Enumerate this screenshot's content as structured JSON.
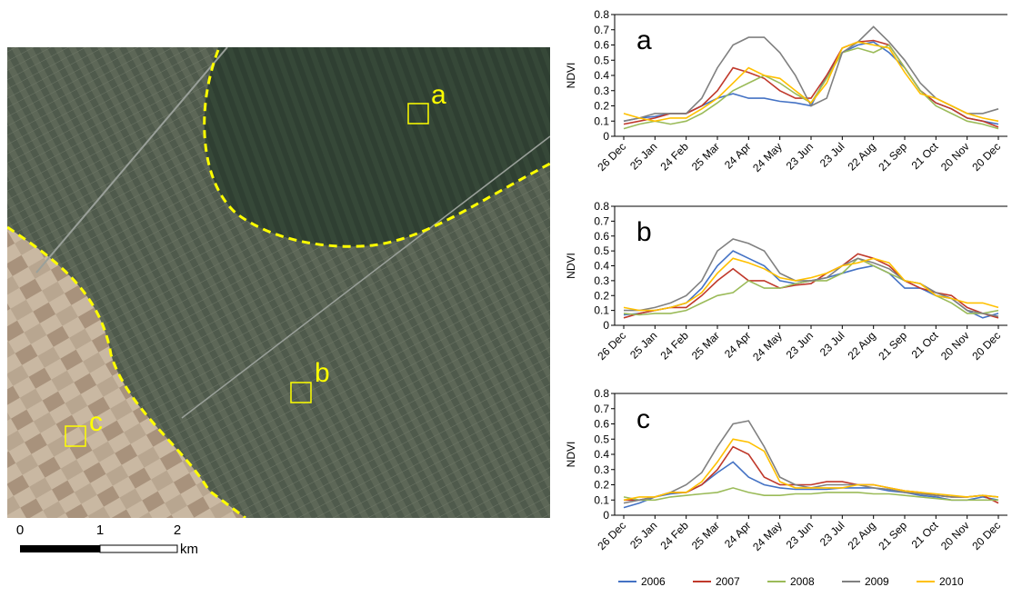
{
  "map": {
    "labels": [
      "a",
      "b",
      "c"
    ],
    "scale_bar": {
      "ticks": [
        0,
        1,
        2
      ],
      "unit": "km"
    }
  },
  "chart_data": [
    {
      "type": "line",
      "annotation": "a",
      "ylabel": "NDVI",
      "categories": [
        "26 Dec",
        null,
        "25 Jan",
        null,
        "24 Feb",
        null,
        "25 Mar",
        null,
        "24 Apr",
        null,
        "24 May",
        null,
        "23 Jun",
        null,
        "23 Jul",
        null,
        "22 Aug",
        null,
        "21 Sep",
        null,
        "21 Oct",
        null,
        "20 Nov",
        null,
        "20 Dec"
      ],
      "ylim": [
        0,
        0.8
      ],
      "yticks": [
        0,
        0.1,
        0.2,
        0.3,
        0.4,
        0.5,
        0.6,
        0.7,
        0.8
      ],
      "series": [
        {
          "name": "2006",
          "color": "#4472c4",
          "values": [
            0.1,
            0.12,
            0.13,
            0.15,
            0.15,
            0.2,
            0.25,
            0.28,
            0.25,
            0.25,
            0.23,
            0.22,
            0.2,
            0.4,
            0.55,
            0.6,
            0.62,
            0.55,
            0.45,
            0.3,
            0.22,
            0.18,
            0.12,
            0.1,
            0.08
          ]
        },
        {
          "name": "2007",
          "color": "#c0392b",
          "values": [
            0.08,
            0.1,
            0.12,
            0.15,
            0.15,
            0.2,
            0.3,
            0.45,
            0.42,
            0.38,
            0.3,
            0.25,
            0.25,
            0.4,
            0.58,
            0.62,
            0.63,
            0.6,
            0.45,
            0.3,
            0.22,
            0.18,
            0.12,
            0.1,
            0.06
          ]
        },
        {
          "name": "2008",
          "color": "#9bbb59",
          "values": [
            0.05,
            0.08,
            0.1,
            0.08,
            0.1,
            0.15,
            0.22,
            0.3,
            0.35,
            0.4,
            0.35,
            0.28,
            0.22,
            0.38,
            0.55,
            0.58,
            0.55,
            0.6,
            0.45,
            0.3,
            0.2,
            0.15,
            0.1,
            0.08,
            0.05
          ]
        },
        {
          "name": "2009",
          "color": "#808080",
          "values": [
            0.1,
            0.12,
            0.15,
            0.15,
            0.15,
            0.25,
            0.45,
            0.6,
            0.65,
            0.65,
            0.55,
            0.4,
            0.2,
            0.25,
            0.55,
            0.62,
            0.72,
            0.62,
            0.5,
            0.35,
            0.25,
            0.2,
            0.15,
            0.15,
            0.18
          ]
        },
        {
          "name": "2010",
          "color": "#ffc000",
          "values": [
            0.15,
            0.12,
            0.1,
            0.12,
            0.12,
            0.18,
            0.25,
            0.35,
            0.45,
            0.4,
            0.38,
            0.3,
            0.22,
            0.35,
            0.58,
            0.62,
            0.6,
            0.58,
            0.42,
            0.28,
            0.25,
            0.2,
            0.15,
            0.12,
            0.1
          ]
        }
      ]
    },
    {
      "type": "line",
      "annotation": "b",
      "ylabel": "NDVI",
      "categories": [
        "26 Dec",
        null,
        "25 Jan",
        null,
        "24 Feb",
        null,
        "25 Mar",
        null,
        "24 Apr",
        null,
        "24 May",
        null,
        "23 Jun",
        null,
        "23 Jul",
        null,
        "22 Aug",
        null,
        "21 Sep",
        null,
        "21 Oct",
        null,
        "20 Nov",
        null,
        "20 Dec"
      ],
      "ylim": [
        0,
        0.8
      ],
      "yticks": [
        0,
        0.1,
        0.2,
        0.3,
        0.4,
        0.5,
        0.6,
        0.7,
        0.8
      ],
      "series": [
        {
          "name": "2006",
          "color": "#4472c4",
          "values": [
            0.07,
            0.08,
            0.1,
            0.12,
            0.15,
            0.25,
            0.4,
            0.5,
            0.45,
            0.4,
            0.3,
            0.28,
            0.3,
            0.32,
            0.35,
            0.38,
            0.4,
            0.35,
            0.25,
            0.25,
            0.2,
            0.18,
            0.1,
            0.05,
            0.08
          ]
        },
        {
          "name": "2007",
          "color": "#c0392b",
          "values": [
            0.05,
            0.08,
            0.1,
            0.12,
            0.12,
            0.2,
            0.3,
            0.38,
            0.3,
            0.3,
            0.25,
            0.27,
            0.28,
            0.35,
            0.4,
            0.48,
            0.45,
            0.4,
            0.3,
            0.25,
            0.22,
            0.2,
            0.12,
            0.08,
            0.05
          ]
        },
        {
          "name": "2008",
          "color": "#9bbb59",
          "values": [
            0.08,
            0.07,
            0.08,
            0.08,
            0.1,
            0.15,
            0.2,
            0.22,
            0.3,
            0.25,
            0.25,
            0.28,
            0.3,
            0.3,
            0.35,
            0.45,
            0.4,
            0.35,
            0.3,
            0.28,
            0.2,
            0.15,
            0.08,
            0.08,
            0.1
          ]
        },
        {
          "name": "2009",
          "color": "#808080",
          "values": [
            0.1,
            0.1,
            0.12,
            0.15,
            0.2,
            0.3,
            0.5,
            0.58,
            0.55,
            0.5,
            0.35,
            0.3,
            0.3,
            0.32,
            0.4,
            0.45,
            0.42,
            0.38,
            0.3,
            0.28,
            0.22,
            0.18,
            0.1,
            0.08,
            0.06
          ]
        },
        {
          "name": "2010",
          "color": "#ffc000",
          "values": [
            0.12,
            0.1,
            0.1,
            0.12,
            0.15,
            0.22,
            0.35,
            0.45,
            0.42,
            0.38,
            0.32,
            0.3,
            0.32,
            0.35,
            0.4,
            0.42,
            0.45,
            0.42,
            0.3,
            0.28,
            0.2,
            0.18,
            0.15,
            0.15,
            0.12
          ]
        }
      ]
    },
    {
      "type": "line",
      "annotation": "c",
      "ylabel": "NDVI",
      "categories": [
        "26 Dec",
        null,
        "25 Jan",
        null,
        "24 Feb",
        null,
        "25 Mar",
        null,
        "24 Apr",
        null,
        "24 May",
        null,
        "23 Jun",
        null,
        "23 Jul",
        null,
        "22 Aug",
        null,
        "21 Sep",
        null,
        "21 Oct",
        null,
        "20 Nov",
        null,
        "20 Dec"
      ],
      "ylim": [
        0,
        0.8
      ],
      "yticks": [
        0,
        0.1,
        0.2,
        0.3,
        0.4,
        0.5,
        0.6,
        0.7,
        0.8
      ],
      "series": [
        {
          "name": "2006",
          "color": "#4472c4",
          "values": [
            0.05,
            0.08,
            0.12,
            0.14,
            0.15,
            0.2,
            0.28,
            0.35,
            0.25,
            0.2,
            0.18,
            0.17,
            0.17,
            0.17,
            0.18,
            0.18,
            0.18,
            0.16,
            0.15,
            0.13,
            0.12,
            0.1,
            0.1,
            0.12,
            0.1
          ]
        },
        {
          "name": "2007",
          "color": "#c0392b",
          "values": [
            0.1,
            0.1,
            0.12,
            0.15,
            0.15,
            0.2,
            0.3,
            0.45,
            0.4,
            0.25,
            0.2,
            0.2,
            0.2,
            0.22,
            0.22,
            0.2,
            0.2,
            0.18,
            0.16,
            0.15,
            0.13,
            0.12,
            0.12,
            0.13,
            0.08
          ]
        },
        {
          "name": "2008",
          "color": "#9bbb59",
          "values": [
            0.12,
            0.1,
            0.1,
            0.12,
            0.13,
            0.14,
            0.15,
            0.18,
            0.15,
            0.13,
            0.13,
            0.14,
            0.14,
            0.15,
            0.15,
            0.15,
            0.14,
            0.14,
            0.13,
            0.12,
            0.11,
            0.1,
            0.1,
            0.1,
            0.1
          ]
        },
        {
          "name": "2009",
          "color": "#808080",
          "values": [
            0.08,
            0.1,
            0.12,
            0.15,
            0.2,
            0.28,
            0.45,
            0.6,
            0.62,
            0.45,
            0.25,
            0.2,
            0.18,
            0.2,
            0.2,
            0.2,
            0.18,
            0.17,
            0.15,
            0.14,
            0.13,
            0.12,
            0.12,
            0.13,
            0.12
          ]
        },
        {
          "name": "2010",
          "color": "#ffc000",
          "values": [
            0.1,
            0.12,
            0.12,
            0.15,
            0.15,
            0.22,
            0.35,
            0.5,
            0.48,
            0.42,
            0.22,
            0.18,
            0.18,
            0.18,
            0.18,
            0.2,
            0.2,
            0.18,
            0.16,
            0.15,
            0.14,
            0.13,
            0.12,
            0.13,
            0.12
          ]
        }
      ]
    }
  ]
}
